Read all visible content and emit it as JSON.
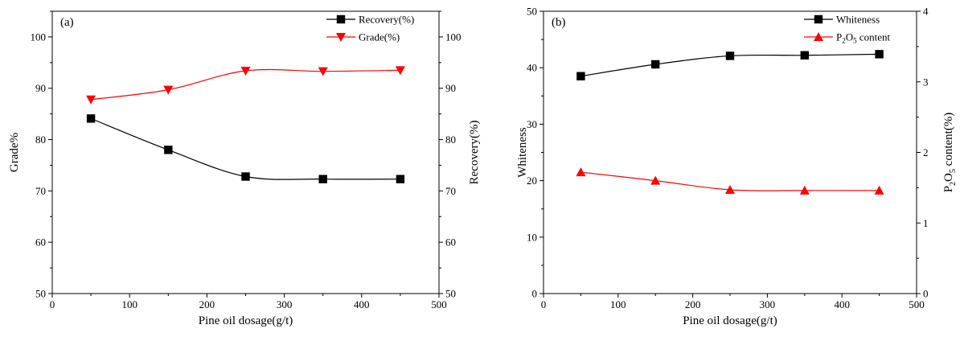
{
  "chart_data": [
    {
      "type": "line",
      "panel_label": "(a)",
      "xlabel": "Pine oil dosage(g/t)",
      "ylabel_left": "Grade%",
      "ylabel_right": "Recovery(%)",
      "xlim": [
        0,
        500
      ],
      "ylim_left": [
        50,
        105
      ],
      "ylim_right": [
        50,
        105
      ],
      "x_ticks": [
        "0",
        "100",
        "200",
        "300",
        "400",
        "500"
      ],
      "y_ticks_left": [
        "50",
        "60",
        "70",
        "80",
        "90",
        "100"
      ],
      "y_ticks_right": [
        "50",
        "60",
        "70",
        "80",
        "90",
        "100"
      ],
      "x": [
        50,
        150,
        250,
        350,
        450
      ],
      "series": [
        {
          "name": "Recovery(%)",
          "axis": "left",
          "values": [
            84.1,
            78.0,
            72.8,
            72.3,
            72.3
          ],
          "color": "#000000",
          "marker": "square"
        },
        {
          "name": "Grade(%)",
          "axis": "left",
          "values": [
            87.8,
            89.7,
            93.4,
            93.3,
            93.5
          ],
          "color": "#ff0000",
          "marker": "triangle-down"
        }
      ],
      "legend": "top-right",
      "grid": false
    },
    {
      "type": "line",
      "panel_label": "(b)",
      "xlabel": "Pine oil dosage(g/t)",
      "ylabel_left": "Whiteness",
      "ylabel_right": "P2O5 content(%)",
      "xlim": [
        0,
        500
      ],
      "ylim_left": [
        0,
        50
      ],
      "ylim_right": [
        0,
        4
      ],
      "x_ticks": [
        "0",
        "100",
        "200",
        "300",
        "400",
        "500"
      ],
      "y_ticks_left": [
        "0",
        "10",
        "20",
        "30",
        "40",
        "50"
      ],
      "y_ticks_right": [
        "0",
        "1",
        "2",
        "3",
        "4"
      ],
      "x": [
        50,
        150,
        250,
        350,
        450
      ],
      "series": [
        {
          "name": "Whiteness",
          "axis": "left",
          "values": [
            38.5,
            40.6,
            42.1,
            42.2,
            42.4
          ],
          "color": "#000000",
          "marker": "square"
        },
        {
          "name": "P2O5 content",
          "axis": "right",
          "values": [
            1.72,
            1.6,
            1.47,
            1.46,
            1.46
          ],
          "color": "#ff0000",
          "marker": "triangle-up"
        }
      ],
      "legend": "top-right",
      "grid": false
    }
  ]
}
